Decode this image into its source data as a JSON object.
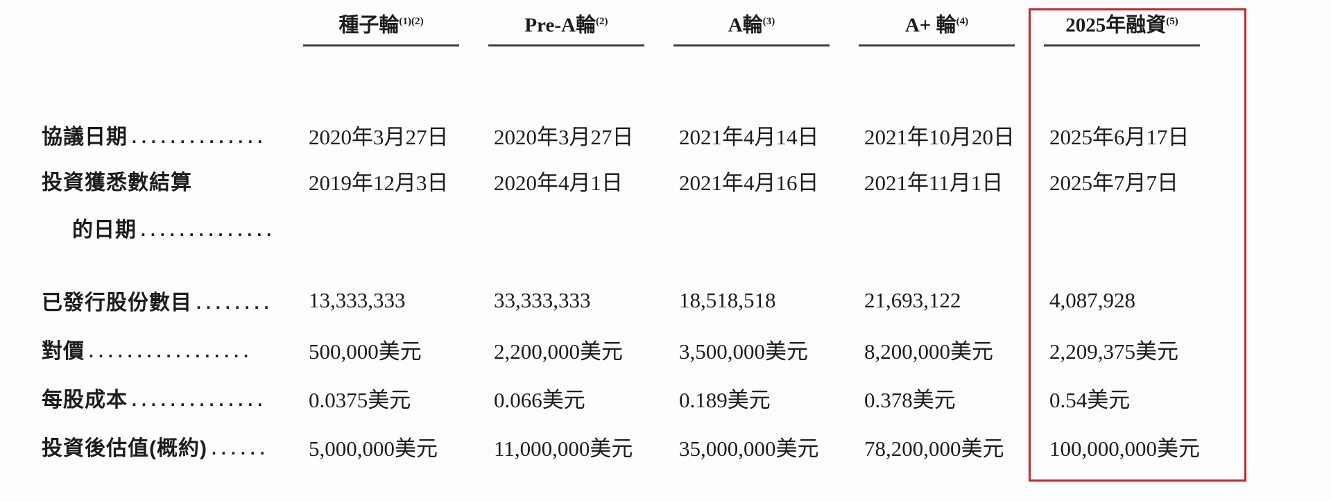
{
  "table": {
    "highlight_color": "#c7232b",
    "columns": [
      {
        "label": "種子輪",
        "sup": "(1)(2)"
      },
      {
        "label": "Pre-A輪",
        "sup": "(2)"
      },
      {
        "label": "A輪",
        "sup": "(3)"
      },
      {
        "label": "A+ 輪",
        "sup": "(4)"
      },
      {
        "label": "2025年融資",
        "sup": "(5)",
        "highlighted": true
      }
    ],
    "rows": [
      {
        "label": "協議日期",
        "dots": "..............",
        "values": [
          "2020年3月27日",
          "2020年3月27日",
          "2021年4月14日",
          "2021年10月20日",
          "2025年6月17日"
        ]
      },
      {
        "label": "投資獲悉數結算",
        "label2": "的日期",
        "dots2": "..............",
        "values": [
          "2019年12月3日",
          "2020年4月1日",
          "2021年4月16日",
          "2021年11月1日",
          "2025年7月7日"
        ]
      },
      {
        "label": "已發行股份數目",
        "dots": "........",
        "values": [
          "13,333,333",
          "33,333,333",
          "18,518,518",
          "21,693,122",
          "4,087,928"
        ]
      },
      {
        "label": "對價",
        "dots": ".................",
        "values": [
          "500,000美元",
          "2,200,000美元",
          "3,500,000美元",
          "8,200,000美元",
          "2,209,375美元"
        ]
      },
      {
        "label": "每股成本",
        "dots": "..............",
        "values": [
          "0.0375美元",
          "0.066美元",
          "0.189美元",
          "0.378美元",
          "0.54美元"
        ]
      },
      {
        "label": "投資後估值(概約)",
        "dots": "......",
        "values": [
          "5,000,000美元",
          "11,000,000美元",
          "35,000,000美元",
          "78,200,000美元",
          "100,000,000美元"
        ]
      }
    ]
  }
}
